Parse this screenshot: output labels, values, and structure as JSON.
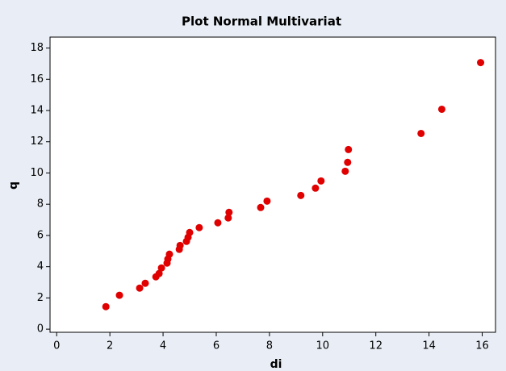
{
  "chart_data": {
    "type": "scatter",
    "title": "Plot Normal Multivariat",
    "x_label": "di",
    "y_label": "q",
    "color": "#e00000",
    "x": [
      1.85,
      2.36,
      3.12,
      3.33,
      3.73,
      3.85,
      3.94,
      4.15,
      4.18,
      4.24,
      4.61,
      4.64,
      4.88,
      4.94,
      5.0,
      5.36,
      6.06,
      6.45,
      6.48,
      7.67,
      7.91,
      9.18,
      9.73,
      9.94,
      10.85,
      10.94,
      10.97,
      13.7,
      14.48,
      15.94
    ],
    "values": [
      1.44,
      2.17,
      2.63,
      2.94,
      3.35,
      3.56,
      3.92,
      4.23,
      4.49,
      4.8,
      5.11,
      5.36,
      5.62,
      5.88,
      6.19,
      6.5,
      6.81,
      7.12,
      7.48,
      7.79,
      8.2,
      8.56,
      9.03,
      9.49,
      10.11,
      10.68,
      11.5,
      12.53,
      14.08,
      17.07
    ],
    "xlim": [
      -0.25,
      16.5
    ],
    "ylim": [
      -0.2,
      18.7
    ],
    "xticks": [
      0,
      2,
      4,
      6,
      8,
      10,
      12,
      14,
      16
    ],
    "yticks": [
      0,
      2,
      4,
      6,
      8,
      10,
      12,
      14,
      16,
      18
    ]
  }
}
